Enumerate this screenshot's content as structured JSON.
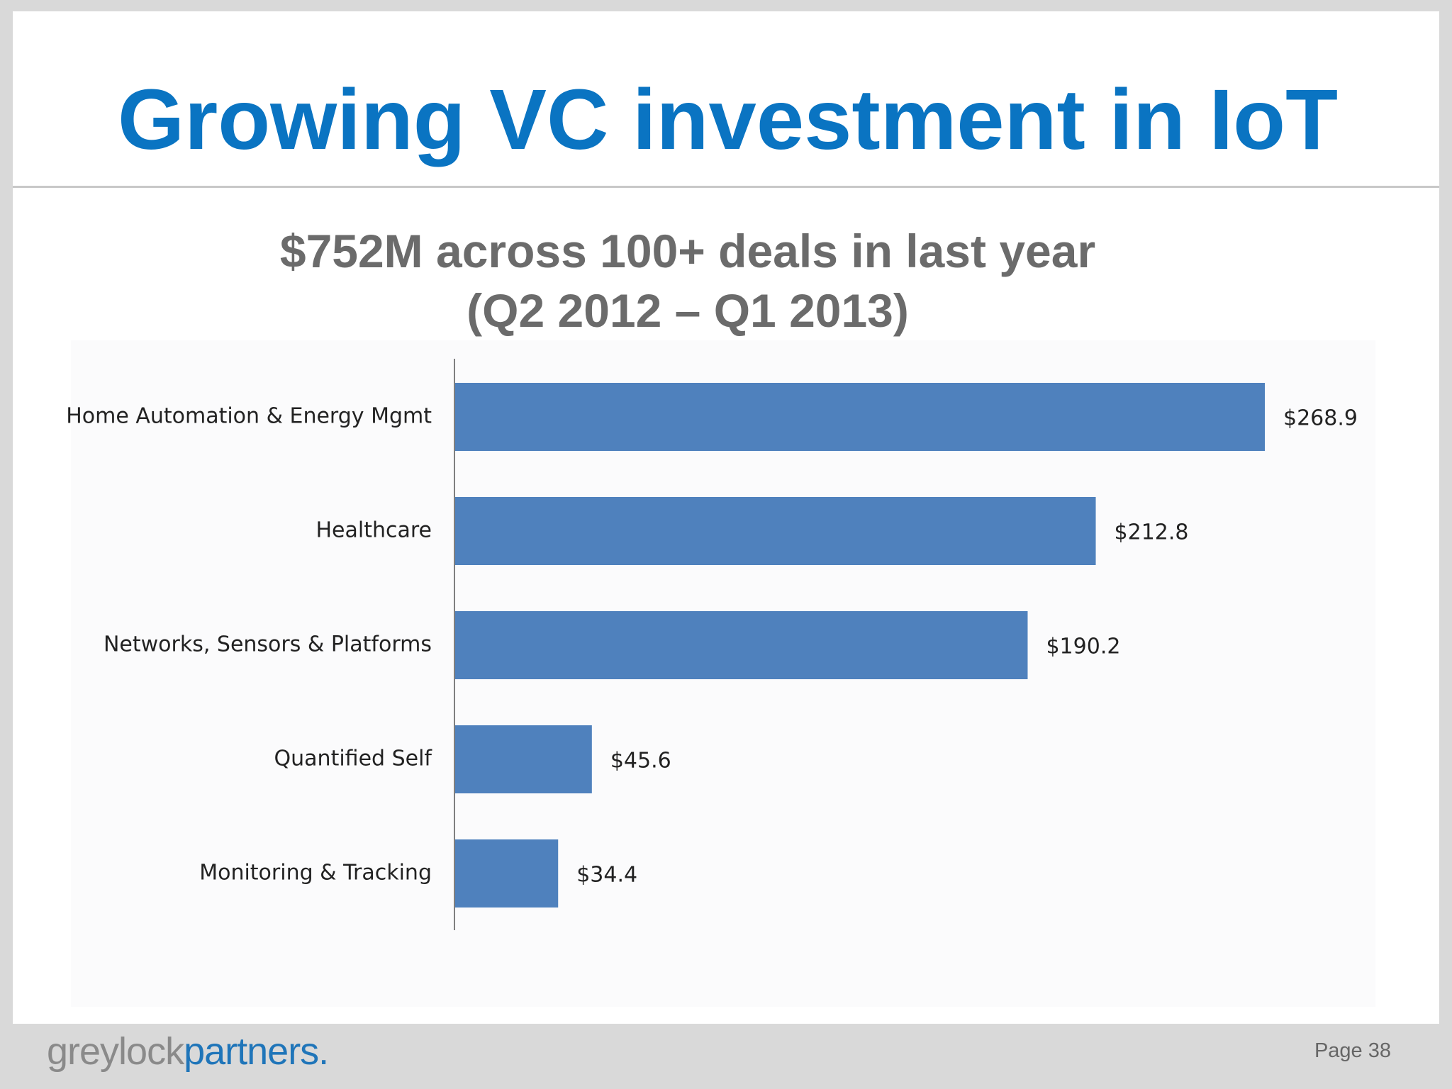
{
  "slide": {
    "title": "Growing VC investment in IoT",
    "page_label": "Page 38"
  },
  "logo": {
    "text_grey": "greylock",
    "text_blue": "partners."
  },
  "colors": {
    "title": "#0a74c2",
    "bar": "#4f81bd",
    "subtitle": "#6b6b6b",
    "logo_blue": "#1f75b9"
  },
  "chart_data": {
    "type": "bar",
    "orientation": "horizontal",
    "title_lines": [
      "$752M across 100+ deals in last year",
      "(Q2 2012 – Q1 2013)"
    ],
    "categories": [
      "Home Automation & Energy Mgmt",
      "Healthcare",
      "Networks, Sensors & Platforms",
      "Quantified Self",
      "Monitoring & Tracking"
    ],
    "values": [
      268.9,
      212.8,
      190.2,
      45.6,
      34.4
    ],
    "value_labels": [
      "$268.9",
      "$212.8",
      "$190.2",
      "$45.6",
      "$34.4"
    ],
    "xlim": [
      0,
      268.9
    ],
    "xlabel": "",
    "ylabel": "",
    "grid": false,
    "legend": "none",
    "x_axis_visible": false
  }
}
